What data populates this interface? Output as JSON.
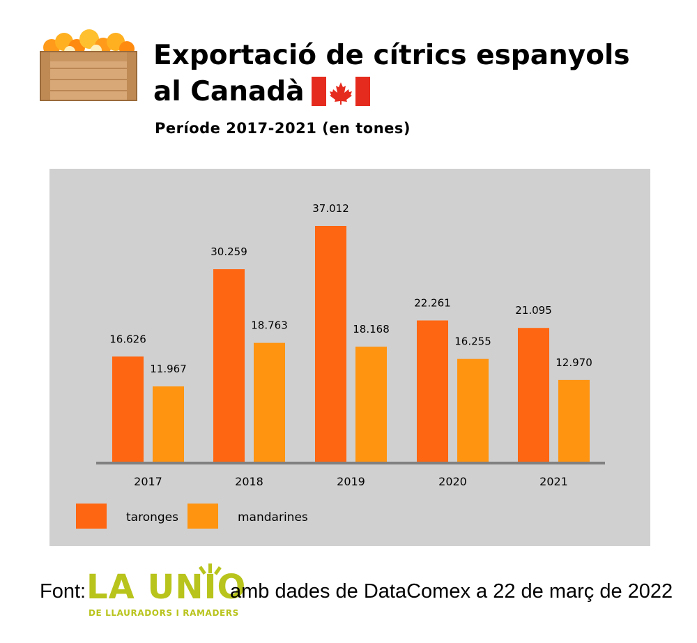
{
  "header": {
    "title_line1": "Exportació de cítrics espanyols",
    "title_line2": "al Canadà",
    "subtitle": "Període 2017-2021 (en tones)"
  },
  "chart_data": {
    "type": "bar",
    "categories": [
      "2017",
      "2018",
      "2019",
      "2020",
      "2021"
    ],
    "series": [
      {
        "name": "taronges",
        "values": [
          16626,
          30259,
          37012,
          22261,
          21095
        ],
        "labels": [
          "16.626",
          "30.259",
          "37.012",
          "22.261",
          "21.095"
        ],
        "color": "#ff6611"
      },
      {
        "name": "mandarines",
        "values": [
          11967,
          18763,
          18168,
          16255,
          12970
        ],
        "labels": [
          "11.967",
          "18.763",
          "18.168",
          "16.255",
          "12.970"
        ],
        "color": "#ff9411"
      }
    ],
    "ylim": [
      0,
      40000
    ],
    "grid": false,
    "legend": "bottom-left",
    "background": "#d0d0d0",
    "axis_color": "#808080"
  },
  "footer": {
    "source_prefix": "Font:",
    "logo_text": "LA UNIO",
    "logo_subtext": "DE LLAURADORS I RAMADERS",
    "logo_color": "#b8c41c",
    "source_suffix": "amb dades de DataComex a 22 de març de 2022"
  },
  "icons": [
    "orange-crate-icon",
    "canada-flag-icon"
  ]
}
